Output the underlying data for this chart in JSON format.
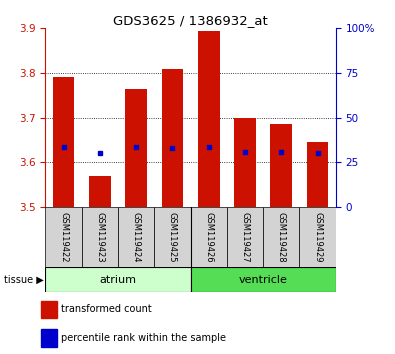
{
  "title": "GDS3625 / 1386932_at",
  "samples": [
    "GSM119422",
    "GSM119423",
    "GSM119424",
    "GSM119425",
    "GSM119426",
    "GSM119427",
    "GSM119428",
    "GSM119429"
  ],
  "red_tops": [
    3.79,
    3.57,
    3.765,
    3.81,
    3.895,
    3.7,
    3.685,
    3.645
  ],
  "blue_vals": [
    3.635,
    3.62,
    3.635,
    3.633,
    3.635,
    3.623,
    3.623,
    3.622
  ],
  "base": 3.5,
  "ylim_left": [
    3.5,
    3.9
  ],
  "ylim_right": [
    0,
    100
  ],
  "yticks_left": [
    3.5,
    3.6,
    3.7,
    3.8,
    3.9
  ],
  "yticks_right": [
    0,
    25,
    50,
    75,
    100
  ],
  "ytick_labels_right": [
    "0",
    "25",
    "50",
    "75",
    "100%"
  ],
  "bar_color": "#cc1100",
  "blue_color": "#0000cc",
  "bar_width": 0.6,
  "background_color": "#ffffff",
  "tick_color_left": "#cc1100",
  "tick_color_right": "#0000cc",
  "atrium_color": "#ccffcc",
  "ventricle_color": "#55dd55",
  "sample_box_color": "#d3d3d3",
  "legend_items": [
    {
      "color": "#cc1100",
      "label": "transformed count"
    },
    {
      "color": "#0000cc",
      "label": "percentile rank within the sample"
    }
  ],
  "grid_ticks": [
    3.6,
    3.7,
    3.8
  ]
}
